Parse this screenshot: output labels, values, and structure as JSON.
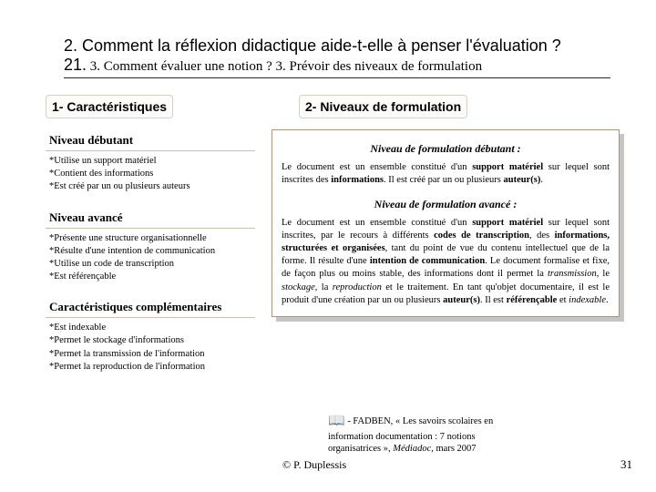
{
  "title": {
    "num1": "2.",
    "text1": "Comment la réflexion didactique aide-t-elle à penser l'évaluation ?",
    "num2": "21.",
    "text2": "3. Comment évaluer une notion ? 3. Prévoir des niveaux de formulation"
  },
  "section1": {
    "header": "1- Caractéristiques",
    "lvl1_title": "Niveau débutant",
    "lvl1_items": [
      "Utilise un support matériel",
      "Contient des informations",
      "Est créé par un ou plusieurs auteurs"
    ],
    "lvl2_title": "Niveau avancé",
    "lvl2_items": [
      "Présente une structure organisationnelle",
      "Résulte d'une intention de communication",
      "Utilise un code de transcription",
      "Est référençable"
    ],
    "lvl3_title": "Caractéristiques complémentaires",
    "lvl3_items": [
      "Est indexable",
      "Permet le stockage d'informations",
      "Permet la transmission de l'information",
      "Permet la reproduction de l'information"
    ]
  },
  "section2": {
    "header": "2- Niveaux de formulation",
    "form1_title": "Niveau de formulation débutant :",
    "form1_body_pre": "Le document est un ensemble constitué d'un ",
    "b1": "support matériel",
    "mid1": " sur lequel sont inscrites des ",
    "b2": "informations",
    "mid2": ". Il est créé par un ou plusieurs ",
    "b3": "auteur(s)",
    "tail1": ".",
    "form2_title": "Niveau de formulation avancé :",
    "body2": "Le document est un ensemble constitué d'un <b>support matériel</b> sur lequel sont inscrites, par le recours à différents <b>codes de transcription</b>, des <b>informations, structurées et organisées</b>, tant du point de vue du contenu intellectuel que de la forme. Il résulte d'une <b>intention de communication</b>. Le document formalise et fixe, de façon plus ou moins stable, des informations dont il permet la <i>transmission</i>, le <i>stockage</i>, la <i>reproduction</i> et le traitement. En tant qu'objet documentaire, il est le produit d'une création par un ou plusieurs <b>auteur(s)</b>. Il est <b>référençable</b> et <i>indexable</i>."
  },
  "citation": {
    "line1": " - FADBEN, « Les savoirs scolaires en",
    "line2": "information documentation : 7 notions",
    "line3": "organisatrices », ",
    "ital": "Médiadoc",
    "line3b": ", mars 2007"
  },
  "copyright": "© P. Duplessis",
  "page": "31",
  "colors": {
    "rule": "#5b0f0f",
    "box_border": "#a89878",
    "shadow": "#c8c5c0"
  }
}
